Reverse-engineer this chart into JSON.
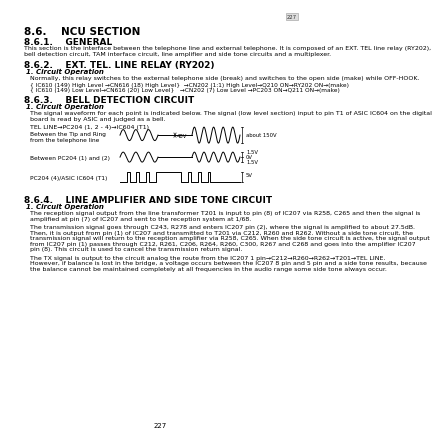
{
  "bg_color": "#ffffff",
  "page_number": "227",
  "sec86_title": "8.6.    NCU SECTION",
  "sec861_title": "8.6.1.    GENERAL",
  "sec861_body": "This section is the interface between the telephone line and external telephone. It is composed of an EXT. TEL line relay (RY202),\nbell detection circuit, TAM interface circuit, line amplifier and side tone circuits and a multiplexer.",
  "sec862_title": "8.6.2.    EXT. TEL. LINE RELAY (RY202)",
  "sec862_sub": "1. Circuit Operation",
  "sec862_body1": "Normally, this relay switches to the external telephone side (break) and switches to the open side (make) while OFF-HOOK.",
  "sec862_body2a": "{ IC610 (149) High Level →CN616 (18) High Level}  →CN202 (1:1) High Level→Q210 ON→RY202 ON→(make)",
  "sec862_body2b": "{ IC610 (149) Low Level→CN616 (20) Low Level}   →CN202 (7) Low Level →PC203 ON→Q211 ON→(make)",
  "sec863_title": "8.6.3.    BELL DETECTION CIRCUIT",
  "sec863_sub": "1. Circuit Operation",
  "sec863_body1": "The signal waveform for each point is indicated below. The signal (low level section) input to pin T1 of ASIC IC604 on the digital\nboard is read by ASIC and judged as a bell.",
  "sec863_body2": "TEL LINE→PC204 (1, 2 - 4)→IC604 (T1)",
  "waveform_label1a": "Between the Tip and Ring",
  "waveform_label1b": "from the telephone line",
  "waveform_label2": "Between PC204 (1) and (2)",
  "waveform_label3": "PC204 (4)/ASIC IC604 (T1)",
  "waveform_ann1": "48V",
  "waveform_ann2": "about 150V",
  "waveform_ann3a": "1.5V",
  "waveform_ann3b": "0V",
  "waveform_ann3c": "1.5V",
  "waveform_ann4": "5V",
  "sec864_title": "8.6.4.    LINE AMPLIFIER AND SIDE TONE CIRCUIT",
  "sec864_sub": "1. Circuit Operation",
  "sec864_body1a": "The reception signal output from the line transformer T201 is input to pin (8) of IC207 via R258, C265 and then the signal is",
  "sec864_body1b": "amplified at pin (7) of IC207 and sent to the reception system at 1/68.",
  "sec864_body2a": "The transmission signal goes through C243, R278 and enters IC207 pin (2), where the signal is amplified to about 27.5dB.",
  "sec864_body2b": "Then, it is output from pin (1) of IC207 and transmitted to T201 via C212, R260 and R262. Without a side tone circuit, the",
  "sec864_body2c": "transmission signal will return to the reception amplifier via R258, C265. When the side tone circuit is active, the signal output",
  "sec864_body2d": "from IC207 pin (1) passes through C212, R261, C206, R264, R260, C300, R267 and C268 and goes into the amplifier IC207",
  "sec864_body2e": "pin (8). This circuit is used to cancel the transmission return signal.",
  "sec864_body3a": "The TX signal is output to the circuit analog the route from the IC207 1 pin→C212→R260→R262→T201→TEL LINE.",
  "sec864_body3b": "However, if balance is lost in the bridge, a voltage occurs between the IC207 8 pin and 5 pin and a side tone results, because",
  "sec864_body3c": "the balance cannot be maintained completely at all frequencies in the audio range some side tone always occur.",
  "page_num_label": "227"
}
